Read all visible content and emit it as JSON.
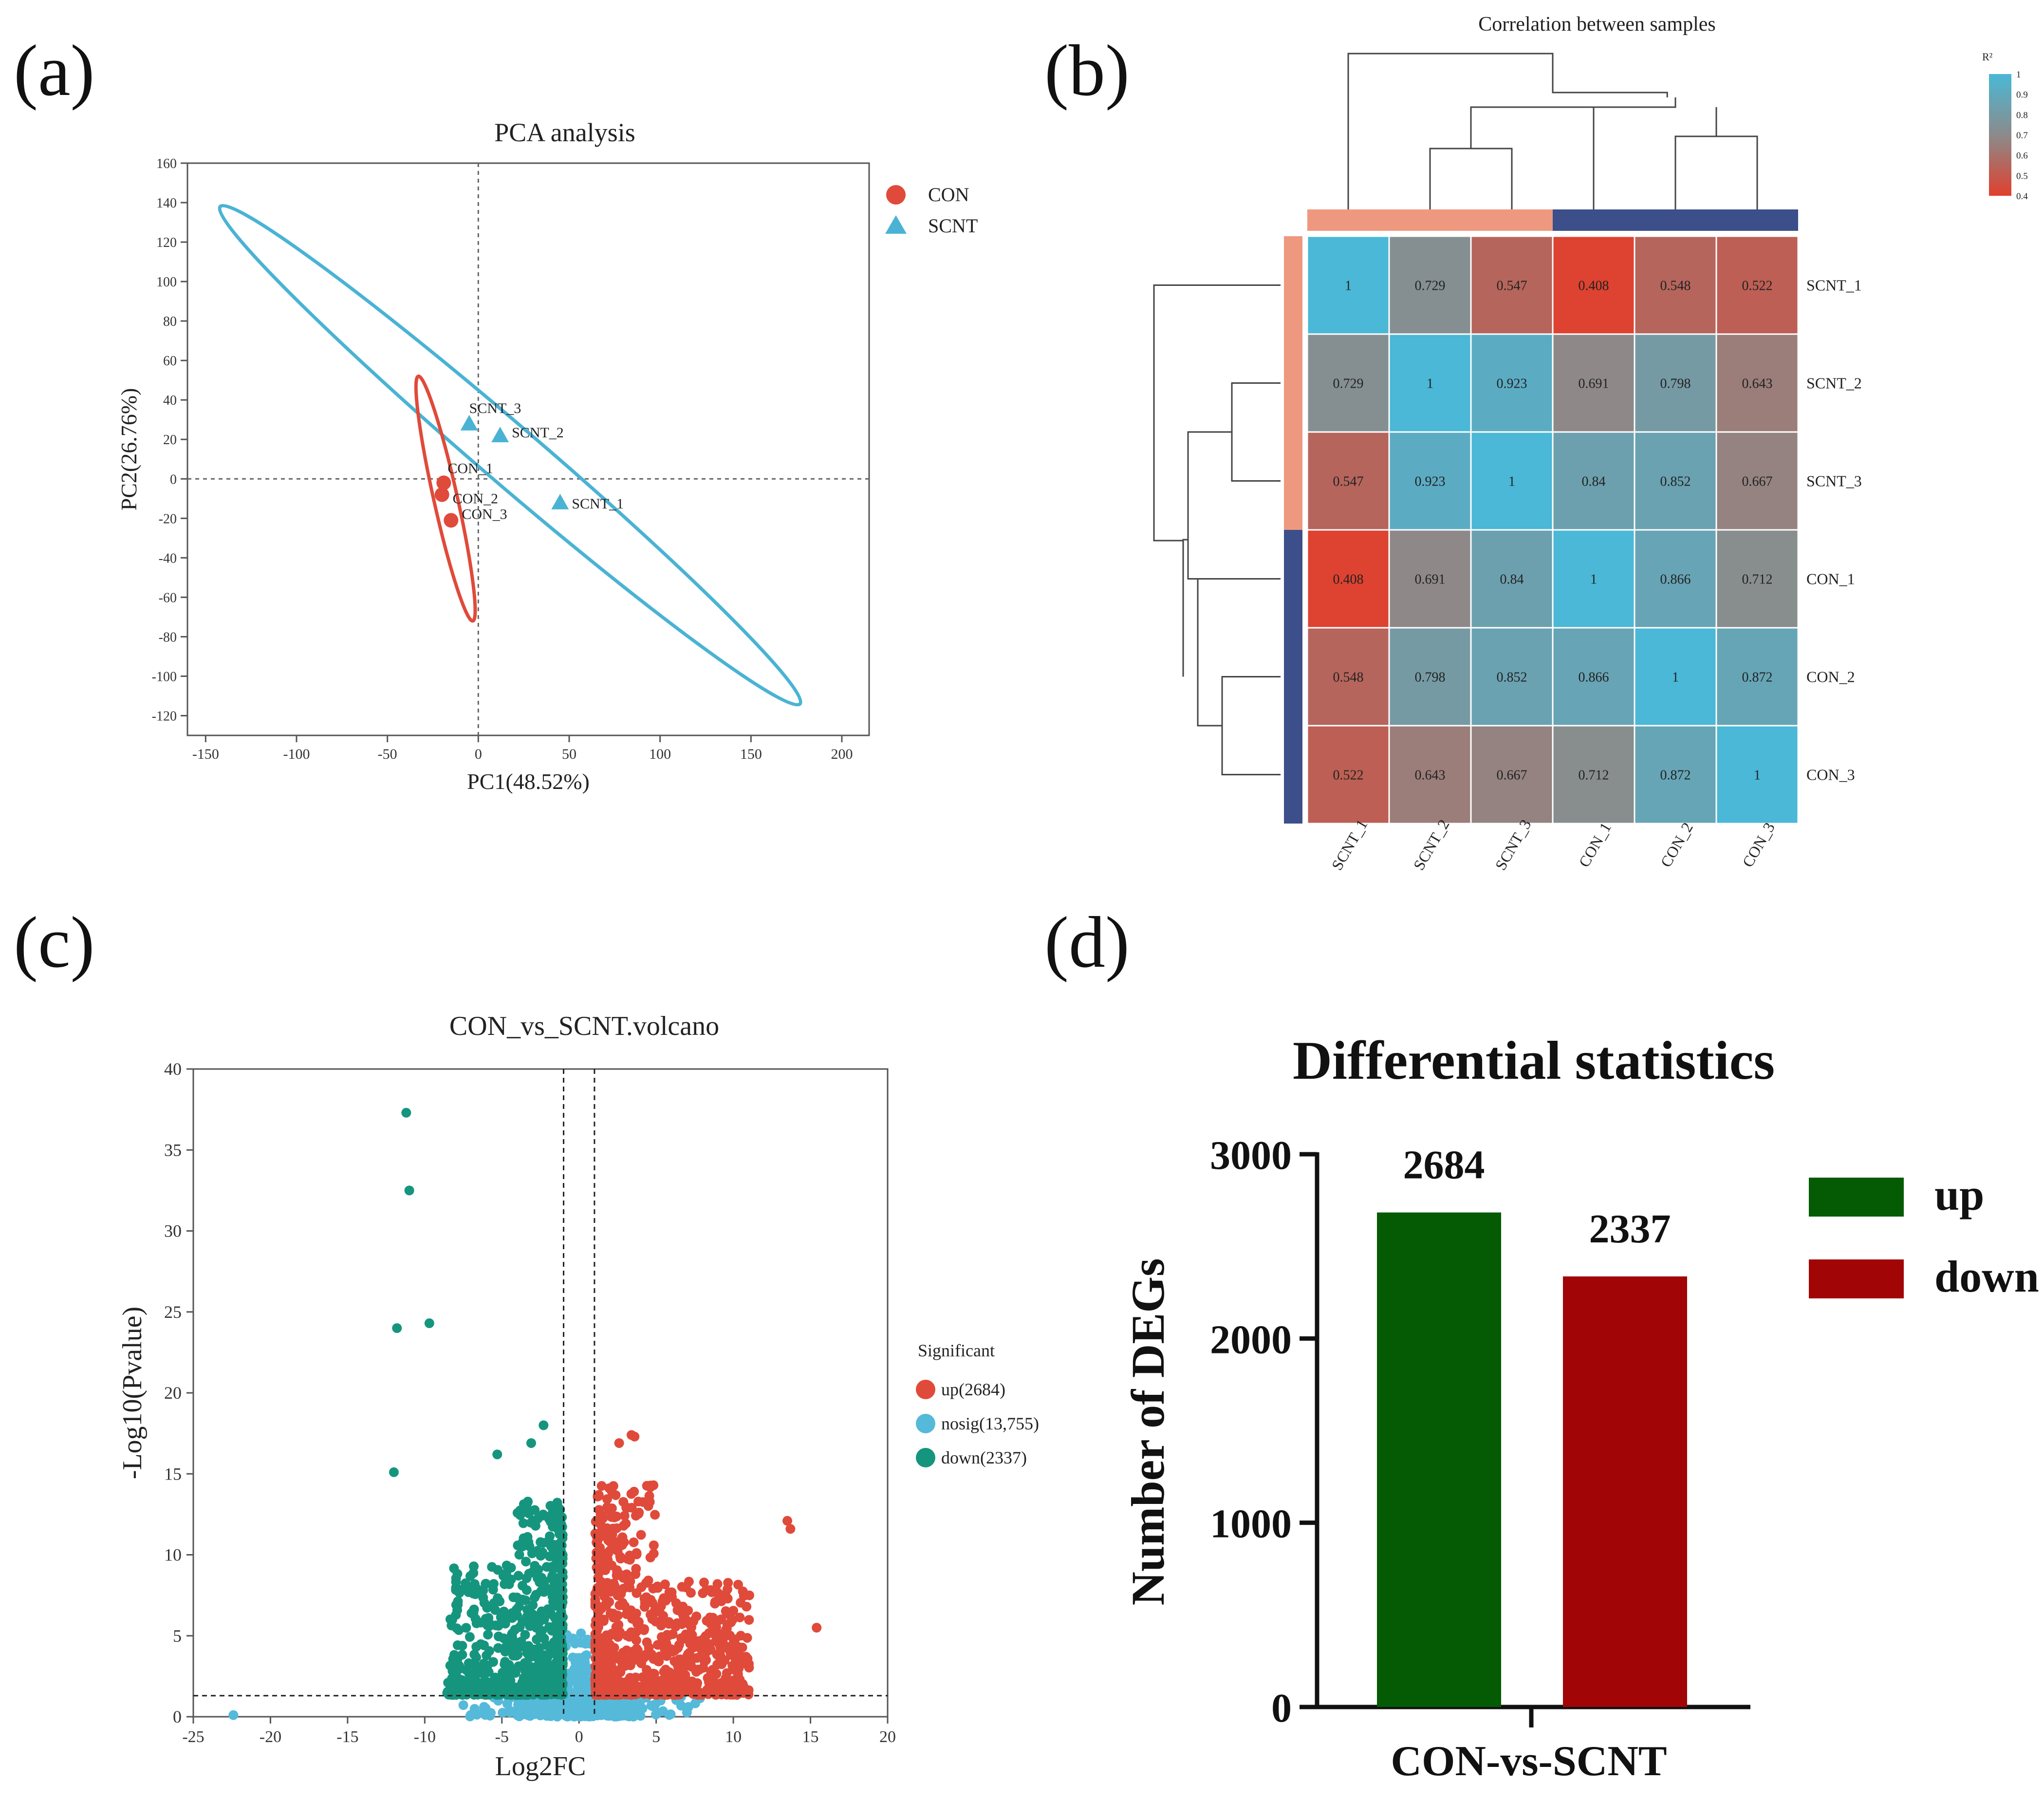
{
  "panels": {
    "a": {
      "label": "(a)"
    },
    "b": {
      "label": "(b)"
    },
    "c": {
      "label": "(c)"
    },
    "d": {
      "label": "(d)"
    }
  },
  "colors": {
    "con": "#e04a3a",
    "scnt": "#4ab3d4",
    "down_teal": "#16957e",
    "nosig": "#55b9da",
    "bar_up": "#045b04",
    "bar_down": "#a10505",
    "group_salmon": "#ee9880",
    "group_navy": "#3c4f8a",
    "heat_high": "#4ab8d6",
    "heat_mid": "#8b8b8b",
    "heat_low": "#e0402e"
  },
  "chart_data": [
    {
      "id": "a",
      "type": "scatter",
      "title": "PCA analysis",
      "xlabel": "PC1(48.52%)",
      "ylabel": "PC2(26.76%)",
      "xlim": [
        -160,
        215
      ],
      "ylim": [
        -130,
        160
      ],
      "xticks": [
        -150,
        -100,
        -50,
        0,
        50,
        100,
        150,
        200
      ],
      "yticks": [
        160,
        140,
        120,
        100,
        80,
        60,
        40,
        20,
        0,
        -20,
        -40,
        -60,
        -80,
        -100,
        -120
      ],
      "legend": [
        {
          "name": "CON",
          "marker": "circle"
        },
        {
          "name": "SCNT",
          "marker": "triangle"
        }
      ],
      "series": [
        {
          "name": "CON",
          "points": [
            {
              "label": "CON_1",
              "x": -19,
              "y": -2
            },
            {
              "label": "CON_2",
              "x": -20,
              "y": -8
            },
            {
              "label": "CON_3",
              "x": -15,
              "y": -21
            }
          ]
        },
        {
          "name": "SCNT",
          "points": [
            {
              "label": "SCNT_1",
              "x": 45,
              "y": -12
            },
            {
              "label": "SCNT_2",
              "x": 12,
              "y": 22
            },
            {
              "label": "SCNT_3",
              "x": -5,
              "y": 28
            }
          ]
        }
      ],
      "ellipses": [
        {
          "group": "SCNT",
          "ends": [
            [
              -142,
              138
            ],
            [
              177,
              -114
            ]
          ],
          "minor_half": 16
        },
        {
          "group": "CON",
          "ends": [
            [
              -33,
              52
            ],
            [
              -3,
              -72
            ]
          ],
          "minor_half": 6.5
        }
      ]
    },
    {
      "id": "b",
      "type": "heatmap",
      "title": "Correlation between samples",
      "legend_title": "R²",
      "legend_ticks": [
        "1",
        "0.9",
        "0.8",
        "0.7",
        "0.6",
        "0.5",
        "0.4"
      ],
      "legend_range": [
        0.4,
        1
      ],
      "columns": [
        "SCNT_1",
        "SCNT_2",
        "SCNT_3",
        "CON_1",
        "CON_2",
        "CON_3"
      ],
      "rows": [
        "SCNT_1",
        "SCNT_2",
        "SCNT_3",
        "CON_1",
        "CON_2",
        "CON_3"
      ],
      "groups": [
        "SCNT",
        "SCNT",
        "SCNT",
        "CON",
        "CON",
        "CON"
      ],
      "values": [
        [
          1,
          0.729,
          0.547,
          0.408,
          0.548,
          0.522
        ],
        [
          0.729,
          1,
          0.923,
          0.691,
          0.798,
          0.643
        ],
        [
          0.547,
          0.923,
          1,
          0.84,
          0.852,
          0.667
        ],
        [
          0.408,
          0.691,
          0.84,
          1,
          0.866,
          0.712
        ],
        [
          0.548,
          0.798,
          0.852,
          0.866,
          1,
          0.872
        ],
        [
          0.522,
          0.643,
          0.667,
          0.712,
          0.872,
          1
        ]
      ]
    },
    {
      "id": "c",
      "type": "scatter",
      "title": "CON_vs_SCNT.volcano",
      "xlabel": "Log2FC",
      "ylabel": "-Log10(Pvalue)",
      "xlim": [
        -25,
        20
      ],
      "ylim": [
        0,
        40
      ],
      "xticks": [
        -25,
        -20,
        -15,
        -10,
        -5,
        0,
        5,
        10,
        15,
        20
      ],
      "yticks": [
        40,
        35,
        30,
        25,
        20,
        15,
        10,
        5,
        0
      ],
      "fc_threshold": 1,
      "p_threshold_line": 1.3,
      "legend_title": "Significant",
      "legend": [
        {
          "name": "up(2684)",
          "color_key": "con"
        },
        {
          "name": "nosig(13,755)",
          "color_key": "nosig"
        },
        {
          "name": "down(2337)",
          "color_key": "down_teal"
        }
      ],
      "counts": {
        "up": 2684,
        "nosig": 13755,
        "down": 2337
      },
      "notable_points": [
        {
          "x": -11.2,
          "y": 37.3,
          "group": "down"
        },
        {
          "x": -11,
          "y": 32.5,
          "group": "down"
        },
        {
          "x": -11.8,
          "y": 24,
          "group": "down"
        },
        {
          "x": -9.7,
          "y": 24.3,
          "group": "down"
        },
        {
          "x": -12,
          "y": 15.1,
          "group": "down"
        },
        {
          "x": -2.3,
          "y": 18,
          "group": "down"
        },
        {
          "x": -3.1,
          "y": 16.9,
          "group": "down"
        },
        {
          "x": -5.3,
          "y": 16.2,
          "group": "down"
        },
        {
          "x": 3.4,
          "y": 17.4,
          "group": "up"
        },
        {
          "x": 3.6,
          "y": 17.3,
          "group": "up"
        },
        {
          "x": 2.6,
          "y": 16.9,
          "group": "up"
        },
        {
          "x": 13.5,
          "y": 12.1,
          "group": "up"
        },
        {
          "x": 13.7,
          "y": 11.6,
          "group": "up"
        },
        {
          "x": 15.4,
          "y": 5.5,
          "group": "up"
        },
        {
          "x": -22.4,
          "y": 0.1,
          "group": "nosig"
        }
      ]
    },
    {
      "id": "d",
      "type": "bar",
      "title": "Differential statistics",
      "xlabel": "CON-vs-SCNT",
      "ylabel": "Number of DEGs",
      "ylim": [
        0,
        3000
      ],
      "yticks": [
        3000,
        2000,
        1000,
        0
      ],
      "series": [
        {
          "name": "up",
          "values": [
            2684
          ],
          "color_key": "bar_up"
        },
        {
          "name": "down",
          "values": [
            2337
          ],
          "color_key": "bar_down"
        }
      ],
      "data_labels": [
        "2684",
        "2337"
      ]
    }
  ]
}
